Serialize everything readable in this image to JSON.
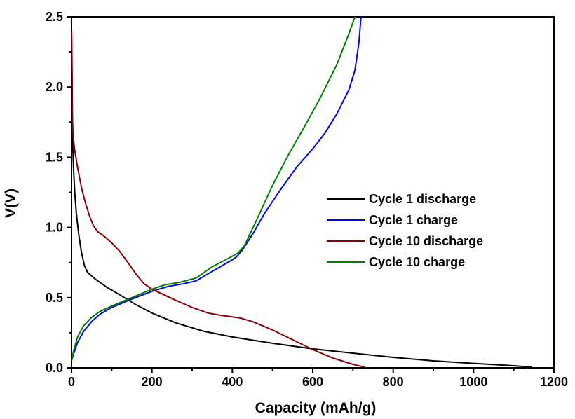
{
  "chart_data": {
    "type": "line",
    "title": "",
    "xlabel": "Capacity (mAh/g)",
    "ylabel": "V(V)",
    "xlim": [
      0,
      1200
    ],
    "ylim": [
      0,
      2.5
    ],
    "xticks": [
      "0",
      "200",
      "400",
      "600",
      "800",
      "1000",
      "1200"
    ],
    "yticks": [
      "0.0",
      "0.5",
      "1.0",
      "1.5",
      "2.0",
      "2.5"
    ],
    "grid": false,
    "legend_position": "right",
    "series": [
      {
        "name": "Cycle 1 discharge",
        "color": "#000000",
        "points": [
          [
            0,
            2.42
          ],
          [
            1,
            2.2
          ],
          [
            2,
            1.9
          ],
          [
            3,
            1.6
          ],
          [
            5,
            1.42
          ],
          [
            8,
            1.25
          ],
          [
            12,
            1.1
          ],
          [
            18,
            0.95
          ],
          [
            25,
            0.82
          ],
          [
            32,
            0.73
          ],
          [
            40,
            0.68
          ],
          [
            60,
            0.63
          ],
          [
            90,
            0.57
          ],
          [
            120,
            0.52
          ],
          [
            160,
            0.45
          ],
          [
            200,
            0.39
          ],
          [
            260,
            0.32
          ],
          [
            330,
            0.26
          ],
          [
            400,
            0.22
          ],
          [
            500,
            0.175
          ],
          [
            600,
            0.135
          ],
          [
            700,
            0.105
          ],
          [
            800,
            0.075
          ],
          [
            900,
            0.05
          ],
          [
            1000,
            0.032
          ],
          [
            1100,
            0.015
          ],
          [
            1145,
            0.005
          ]
        ]
      },
      {
        "name": "Cycle 1 charge",
        "color": "#0000ff",
        "points": [
          [
            0,
            0.05
          ],
          [
            5,
            0.1
          ],
          [
            15,
            0.18
          ],
          [
            30,
            0.26
          ],
          [
            50,
            0.33
          ],
          [
            70,
            0.38
          ],
          [
            100,
            0.43
          ],
          [
            150,
            0.49
          ],
          [
            200,
            0.545
          ],
          [
            240,
            0.58
          ],
          [
            280,
            0.6
          ],
          [
            310,
            0.62
          ],
          [
            340,
            0.67
          ],
          [
            370,
            0.72
          ],
          [
            400,
            0.77
          ],
          [
            410,
            0.79
          ],
          [
            425,
            0.84
          ],
          [
            450,
            0.95
          ],
          [
            480,
            1.1
          ],
          [
            520,
            1.27
          ],
          [
            560,
            1.43
          ],
          [
            600,
            1.56
          ],
          [
            630,
            1.67
          ],
          [
            660,
            1.81
          ],
          [
            690,
            1.98
          ],
          [
            705,
            2.12
          ],
          [
            715,
            2.32
          ],
          [
            720,
            2.5
          ]
        ]
      },
      {
        "name": "Cycle 10 discharge",
        "color": "#8b0000",
        "points": [
          [
            0,
            2.4
          ],
          [
            1,
            2.1
          ],
          [
            2,
            1.8
          ],
          [
            4,
            1.65
          ],
          [
            8,
            1.55
          ],
          [
            15,
            1.43
          ],
          [
            25,
            1.28
          ],
          [
            35,
            1.17
          ],
          [
            45,
            1.08
          ],
          [
            55,
            1.01
          ],
          [
            65,
            0.97
          ],
          [
            80,
            0.94
          ],
          [
            100,
            0.89
          ],
          [
            120,
            0.83
          ],
          [
            140,
            0.75
          ],
          [
            160,
            0.67
          ],
          [
            180,
            0.6
          ],
          [
            200,
            0.56
          ],
          [
            230,
            0.52
          ],
          [
            260,
            0.48
          ],
          [
            300,
            0.43
          ],
          [
            340,
            0.39
          ],
          [
            370,
            0.375
          ],
          [
            420,
            0.355
          ],
          [
            450,
            0.33
          ],
          [
            500,
            0.27
          ],
          [
            550,
            0.2
          ],
          [
            600,
            0.13
          ],
          [
            650,
            0.07
          ],
          [
            700,
            0.025
          ],
          [
            730,
            0.005
          ]
        ]
      },
      {
        "name": "Cycle 10 charge",
        "color": "#008000",
        "points": [
          [
            0,
            0.05
          ],
          [
            5,
            0.12
          ],
          [
            15,
            0.22
          ],
          [
            30,
            0.3
          ],
          [
            50,
            0.36
          ],
          [
            70,
            0.4
          ],
          [
            100,
            0.44
          ],
          [
            150,
            0.5
          ],
          [
            200,
            0.56
          ],
          [
            230,
            0.59
          ],
          [
            270,
            0.61
          ],
          [
            310,
            0.64
          ],
          [
            350,
            0.72
          ],
          [
            390,
            0.78
          ],
          [
            415,
            0.82
          ],
          [
            430,
            0.87
          ],
          [
            460,
            1.05
          ],
          [
            500,
            1.3
          ],
          [
            540,
            1.52
          ],
          [
            580,
            1.72
          ],
          [
            620,
            1.93
          ],
          [
            660,
            2.16
          ],
          [
            690,
            2.38
          ],
          [
            705,
            2.5
          ]
        ]
      }
    ]
  }
}
